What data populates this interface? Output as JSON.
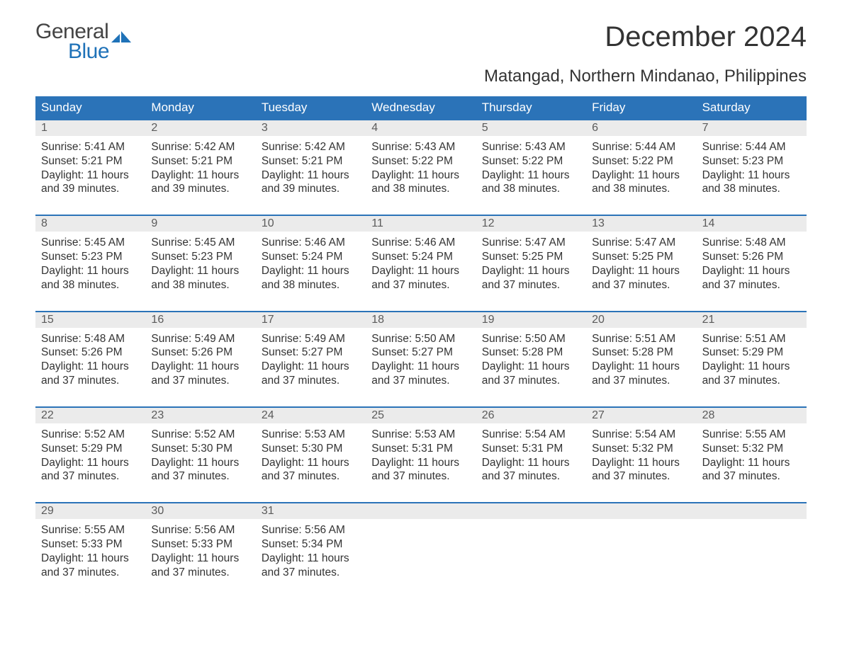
{
  "brand": {
    "line1": "General",
    "line2": "Blue",
    "flag_color": "#1f72b8"
  },
  "title": "December 2024",
  "location": "Matangad, Northern Mindanao, Philippines",
  "colors": {
    "header_bg": "#2b73b8",
    "header_text": "#ffffff",
    "daynum_bg": "#ebebeb",
    "daynum_text": "#5b5b5b",
    "border": "#2b73b8",
    "body_text": "#333333",
    "background": "#ffffff"
  },
  "typography": {
    "title_fontsize": 40,
    "location_fontsize": 24,
    "dow_fontsize": 17,
    "daynum_fontsize": 16,
    "cell_fontsize": 15.5
  },
  "days_of_week": [
    "Sunday",
    "Monday",
    "Tuesday",
    "Wednesday",
    "Thursday",
    "Friday",
    "Saturday"
  ],
  "weeks": [
    [
      {
        "n": "1",
        "sunrise": "Sunrise: 5:41 AM",
        "sunset": "Sunset: 5:21 PM",
        "dl1": "Daylight: 11 hours",
        "dl2": "and 39 minutes."
      },
      {
        "n": "2",
        "sunrise": "Sunrise: 5:42 AM",
        "sunset": "Sunset: 5:21 PM",
        "dl1": "Daylight: 11 hours",
        "dl2": "and 39 minutes."
      },
      {
        "n": "3",
        "sunrise": "Sunrise: 5:42 AM",
        "sunset": "Sunset: 5:21 PM",
        "dl1": "Daylight: 11 hours",
        "dl2": "and 39 minutes."
      },
      {
        "n": "4",
        "sunrise": "Sunrise: 5:43 AM",
        "sunset": "Sunset: 5:22 PM",
        "dl1": "Daylight: 11 hours",
        "dl2": "and 38 minutes."
      },
      {
        "n": "5",
        "sunrise": "Sunrise: 5:43 AM",
        "sunset": "Sunset: 5:22 PM",
        "dl1": "Daylight: 11 hours",
        "dl2": "and 38 minutes."
      },
      {
        "n": "6",
        "sunrise": "Sunrise: 5:44 AM",
        "sunset": "Sunset: 5:22 PM",
        "dl1": "Daylight: 11 hours",
        "dl2": "and 38 minutes."
      },
      {
        "n": "7",
        "sunrise": "Sunrise: 5:44 AM",
        "sunset": "Sunset: 5:23 PM",
        "dl1": "Daylight: 11 hours",
        "dl2": "and 38 minutes."
      }
    ],
    [
      {
        "n": "8",
        "sunrise": "Sunrise: 5:45 AM",
        "sunset": "Sunset: 5:23 PM",
        "dl1": "Daylight: 11 hours",
        "dl2": "and 38 minutes."
      },
      {
        "n": "9",
        "sunrise": "Sunrise: 5:45 AM",
        "sunset": "Sunset: 5:23 PM",
        "dl1": "Daylight: 11 hours",
        "dl2": "and 38 minutes."
      },
      {
        "n": "10",
        "sunrise": "Sunrise: 5:46 AM",
        "sunset": "Sunset: 5:24 PM",
        "dl1": "Daylight: 11 hours",
        "dl2": "and 38 minutes."
      },
      {
        "n": "11",
        "sunrise": "Sunrise: 5:46 AM",
        "sunset": "Sunset: 5:24 PM",
        "dl1": "Daylight: 11 hours",
        "dl2": "and 37 minutes."
      },
      {
        "n": "12",
        "sunrise": "Sunrise: 5:47 AM",
        "sunset": "Sunset: 5:25 PM",
        "dl1": "Daylight: 11 hours",
        "dl2": "and 37 minutes."
      },
      {
        "n": "13",
        "sunrise": "Sunrise: 5:47 AM",
        "sunset": "Sunset: 5:25 PM",
        "dl1": "Daylight: 11 hours",
        "dl2": "and 37 minutes."
      },
      {
        "n": "14",
        "sunrise": "Sunrise: 5:48 AM",
        "sunset": "Sunset: 5:26 PM",
        "dl1": "Daylight: 11 hours",
        "dl2": "and 37 minutes."
      }
    ],
    [
      {
        "n": "15",
        "sunrise": "Sunrise: 5:48 AM",
        "sunset": "Sunset: 5:26 PM",
        "dl1": "Daylight: 11 hours",
        "dl2": "and 37 minutes."
      },
      {
        "n": "16",
        "sunrise": "Sunrise: 5:49 AM",
        "sunset": "Sunset: 5:26 PM",
        "dl1": "Daylight: 11 hours",
        "dl2": "and 37 minutes."
      },
      {
        "n": "17",
        "sunrise": "Sunrise: 5:49 AM",
        "sunset": "Sunset: 5:27 PM",
        "dl1": "Daylight: 11 hours",
        "dl2": "and 37 minutes."
      },
      {
        "n": "18",
        "sunrise": "Sunrise: 5:50 AM",
        "sunset": "Sunset: 5:27 PM",
        "dl1": "Daylight: 11 hours",
        "dl2": "and 37 minutes."
      },
      {
        "n": "19",
        "sunrise": "Sunrise: 5:50 AM",
        "sunset": "Sunset: 5:28 PM",
        "dl1": "Daylight: 11 hours",
        "dl2": "and 37 minutes."
      },
      {
        "n": "20",
        "sunrise": "Sunrise: 5:51 AM",
        "sunset": "Sunset: 5:28 PM",
        "dl1": "Daylight: 11 hours",
        "dl2": "and 37 minutes."
      },
      {
        "n": "21",
        "sunrise": "Sunrise: 5:51 AM",
        "sunset": "Sunset: 5:29 PM",
        "dl1": "Daylight: 11 hours",
        "dl2": "and 37 minutes."
      }
    ],
    [
      {
        "n": "22",
        "sunrise": "Sunrise: 5:52 AM",
        "sunset": "Sunset: 5:29 PM",
        "dl1": "Daylight: 11 hours",
        "dl2": "and 37 minutes."
      },
      {
        "n": "23",
        "sunrise": "Sunrise: 5:52 AM",
        "sunset": "Sunset: 5:30 PM",
        "dl1": "Daylight: 11 hours",
        "dl2": "and 37 minutes."
      },
      {
        "n": "24",
        "sunrise": "Sunrise: 5:53 AM",
        "sunset": "Sunset: 5:30 PM",
        "dl1": "Daylight: 11 hours",
        "dl2": "and 37 minutes."
      },
      {
        "n": "25",
        "sunrise": "Sunrise: 5:53 AM",
        "sunset": "Sunset: 5:31 PM",
        "dl1": "Daylight: 11 hours",
        "dl2": "and 37 minutes."
      },
      {
        "n": "26",
        "sunrise": "Sunrise: 5:54 AM",
        "sunset": "Sunset: 5:31 PM",
        "dl1": "Daylight: 11 hours",
        "dl2": "and 37 minutes."
      },
      {
        "n": "27",
        "sunrise": "Sunrise: 5:54 AM",
        "sunset": "Sunset: 5:32 PM",
        "dl1": "Daylight: 11 hours",
        "dl2": "and 37 minutes."
      },
      {
        "n": "28",
        "sunrise": "Sunrise: 5:55 AM",
        "sunset": "Sunset: 5:32 PM",
        "dl1": "Daylight: 11 hours",
        "dl2": "and 37 minutes."
      }
    ],
    [
      {
        "n": "29",
        "sunrise": "Sunrise: 5:55 AM",
        "sunset": "Sunset: 5:33 PM",
        "dl1": "Daylight: 11 hours",
        "dl2": "and 37 minutes."
      },
      {
        "n": "30",
        "sunrise": "Sunrise: 5:56 AM",
        "sunset": "Sunset: 5:33 PM",
        "dl1": "Daylight: 11 hours",
        "dl2": "and 37 minutes."
      },
      {
        "n": "31",
        "sunrise": "Sunrise: 5:56 AM",
        "sunset": "Sunset: 5:34 PM",
        "dl1": "Daylight: 11 hours",
        "dl2": "and 37 minutes."
      },
      null,
      null,
      null,
      null
    ]
  ]
}
